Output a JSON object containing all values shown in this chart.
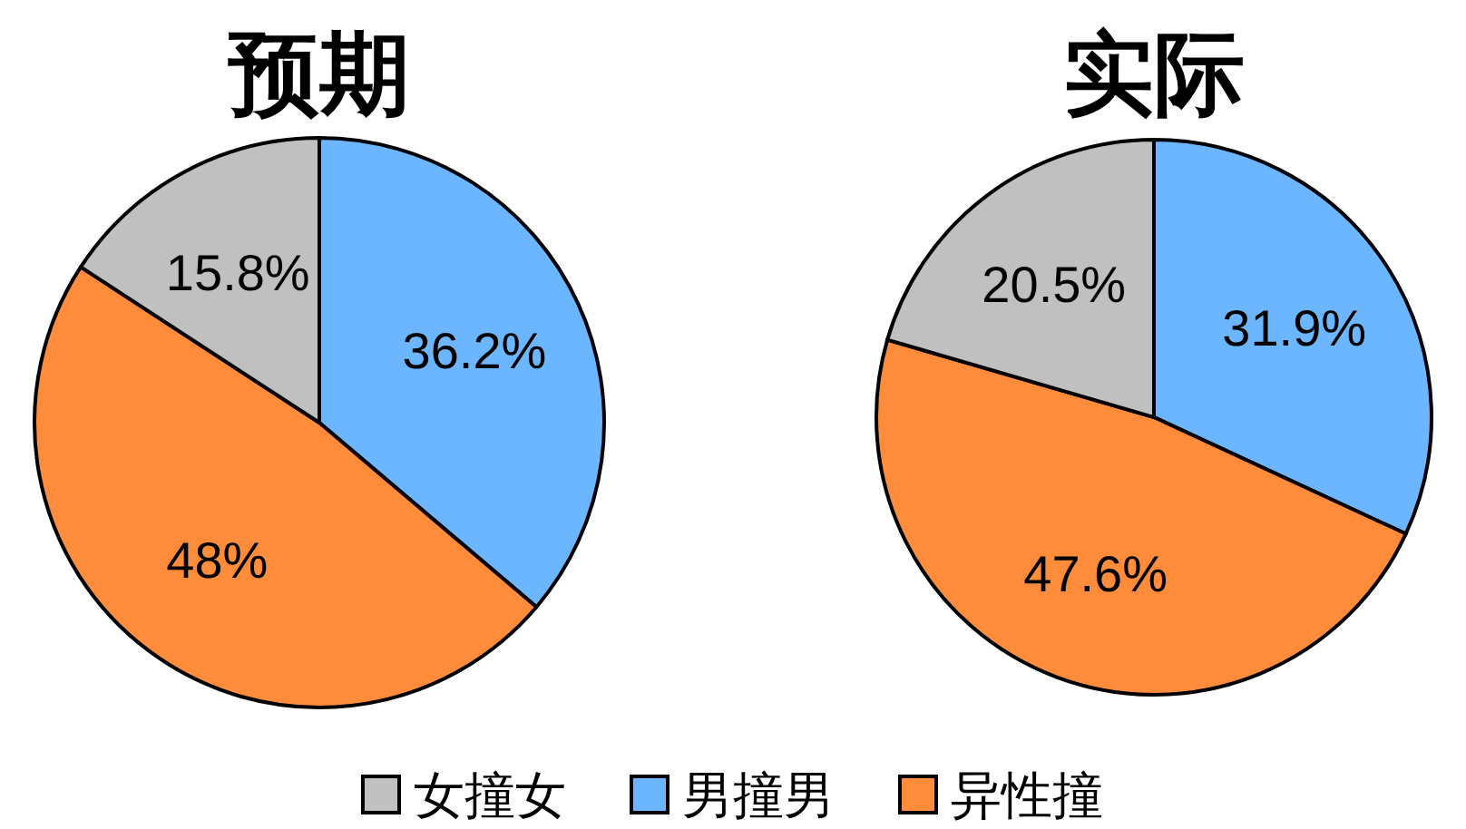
{
  "chart_data": [
    {
      "type": "pie",
      "title": "预期",
      "categories": [
        "男撞男",
        "异性撞",
        "女撞女"
      ],
      "values": [
        36.2,
        48,
        15.8
      ],
      "colors": [
        "#6cb6ff",
        "#ff8c3a",
        "#c0c0c0"
      ],
      "value_labels": [
        "36.2%",
        "48%",
        "15.8%"
      ],
      "legend": "bottom"
    },
    {
      "type": "pie",
      "title": "实际",
      "categories": [
        null,
        null,
        null
      ],
      "values": [
        31.9,
        47.6,
        20.5
      ],
      "colors": [
        "#6cb6ff",
        "#ff8c3a",
        "#c0c0c0"
      ],
      "value_labels": [
        "31.9%",
        "47.6%",
        "20.5%"
      ]
    }
  ]
}
